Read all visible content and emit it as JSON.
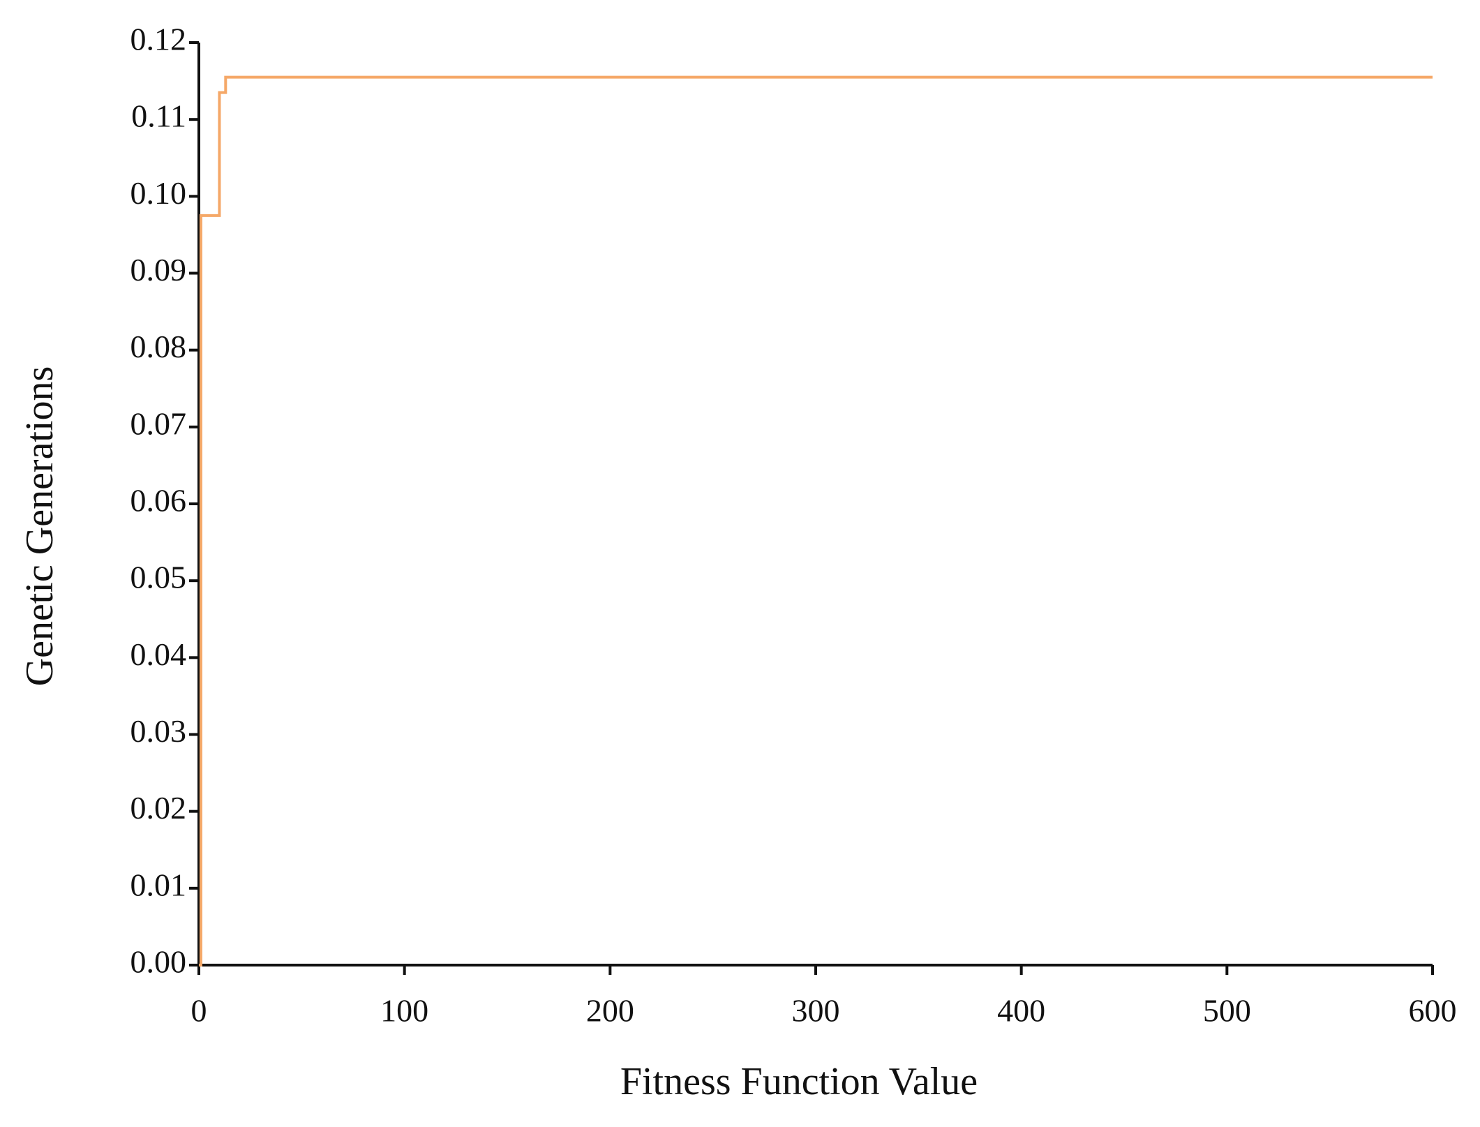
{
  "chart_data": {
    "type": "line",
    "x_label": "Fitness Function Value",
    "y_label": "Genetic Generations",
    "x": [
      0,
      1,
      9,
      10,
      12,
      13,
      600
    ],
    "series": [
      {
        "color": "#f5a868",
        "values": [
          0,
          0.0975,
          0.0975,
          0.1135,
          0.1135,
          0.1155,
          0.1155
        ]
      }
    ],
    "xlim": [
      0,
      600
    ],
    "xticks": [
      0,
      100,
      200,
      300,
      400,
      500,
      600
    ],
    "ylim": [
      0,
      0.12
    ],
    "yticks": [
      {
        "value": 0,
        "label": "0.00"
      },
      {
        "value": 0.01,
        "label": "0.01"
      },
      {
        "value": 0.02,
        "label": "0.02"
      },
      {
        "value": 0.03,
        "label": "0.03"
      },
      {
        "value": 0.04,
        "label": "0.04"
      },
      {
        "value": 0.05,
        "label": "0.05"
      },
      {
        "value": 0.06,
        "label": "0.06"
      },
      {
        "value": 0.07,
        "label": "0.07"
      },
      {
        "value": 0.08,
        "label": "0.08"
      },
      {
        "value": 0.09,
        "label": "0.09"
      },
      {
        "value": 0.1,
        "label": "0.10"
      },
      {
        "value": 0.11,
        "label": "0.11"
      },
      {
        "value": 0.12,
        "label": "0.12"
      }
    ],
    "grid": false,
    "step": true
  }
}
